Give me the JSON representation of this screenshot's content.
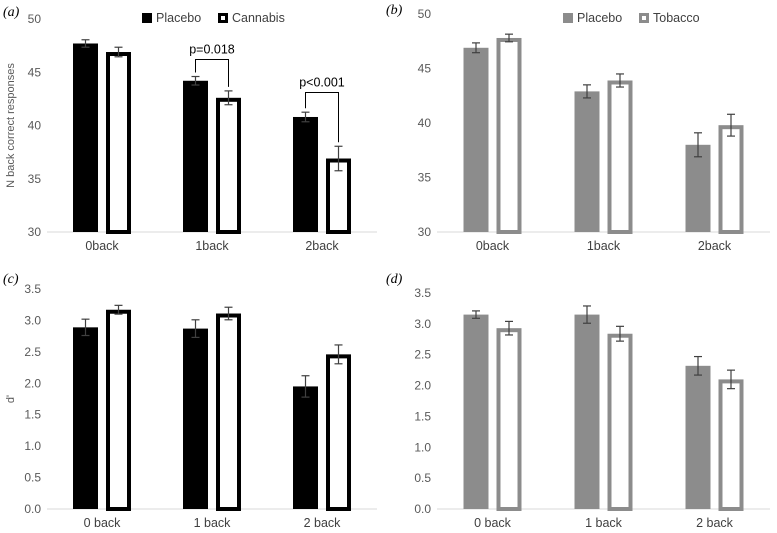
{
  "chart_data": [
    {
      "panel": "(a)",
      "type": "bar",
      "ylabel": "N back correct responses",
      "ylim": [
        30,
        50
      ],
      "yticks": [
        30,
        35,
        40,
        45,
        50
      ],
      "ytick_labels": [
        "30",
        "35",
        "40",
        "45",
        "50"
      ],
      "categories": [
        "0back",
        "1back",
        "2back"
      ],
      "legend": "top",
      "colors": {
        "first": "#000000",
        "second": "#ffffff",
        "edge": "#000000"
      },
      "series": [
        {
          "name": "Placebo",
          "values": [
            47.7,
            44.2,
            40.8
          ],
          "errors": [
            0.35,
            0.4,
            0.45
          ]
        },
        {
          "name": "Cannabis",
          "values": [
            46.9,
            42.6,
            36.9
          ],
          "errors": [
            0.45,
            0.65,
            1.15
          ]
        }
      ],
      "annotations": [
        {
          "text": "p=0.018",
          "category": 1,
          "height": 46.2
        },
        {
          "text": "p<0.001",
          "category": 2,
          "height": 43.1
        }
      ]
    },
    {
      "panel": "(b)",
      "type": "bar",
      "ylabel": "",
      "ylim": [
        30,
        50
      ],
      "yticks": [
        30,
        35,
        40,
        45,
        50
      ],
      "ytick_labels": [
        "30",
        "35",
        "40",
        "45",
        "50"
      ],
      "categories": [
        "0back",
        "1back",
        "2back"
      ],
      "legend": "top",
      "colors": {
        "first": "#8c8c8c",
        "second": "#ffffff",
        "edge": "#8c8c8c"
      },
      "series": [
        {
          "name": "Placebo",
          "values": [
            46.9,
            42.9,
            38.0
          ],
          "errors": [
            0.45,
            0.6,
            1.1
          ]
        },
        {
          "name": "Tobacco",
          "values": [
            47.8,
            43.9,
            39.8
          ],
          "errors": [
            0.35,
            0.6,
            1.0
          ]
        }
      ],
      "annotations": []
    },
    {
      "panel": "(c)",
      "type": "bar",
      "ylabel": "d'",
      "ylim": [
        0,
        3.5
      ],
      "yticks": [
        0,
        0.5,
        1.0,
        1.5,
        2.0,
        2.5,
        3.0,
        3.5
      ],
      "ytick_labels": [
        "0.0",
        "0.5",
        "1.0",
        "1.5",
        "2.0",
        "2.5",
        "3.0",
        "3.5"
      ],
      "categories": [
        "0 back",
        "1 back",
        "2 back"
      ],
      "legend": "none",
      "colors": {
        "first": "#000000",
        "second": "#ffffff",
        "edge": "#000000"
      },
      "series": [
        {
          "values": [
            2.89,
            2.87,
            1.95
          ],
          "errors": [
            0.13,
            0.14,
            0.17
          ]
        },
        {
          "values": [
            3.17,
            3.11,
            2.46
          ],
          "errors": [
            0.07,
            0.1,
            0.15
          ]
        }
      ],
      "annotations": []
    },
    {
      "panel": "(d)",
      "type": "bar",
      "ylabel": "",
      "ylim": [
        0,
        3.5
      ],
      "yticks": [
        0,
        0.5,
        1.0,
        1.5,
        2.0,
        2.5,
        3.0,
        3.5
      ],
      "ytick_labels": [
        "0.0",
        "0.5",
        "1.0",
        "1.5",
        "2.0",
        "2.5",
        "3.0",
        "3.5"
      ],
      "categories": [
        "0 back",
        "1 back",
        "2 back"
      ],
      "legend": "none",
      "colors": {
        "first": "#8c8c8c",
        "second": "#ffffff",
        "edge": "#8c8c8c"
      },
      "series": [
        {
          "values": [
            3.15,
            3.15,
            2.32
          ],
          "errors": [
            0.06,
            0.14,
            0.15
          ]
        },
        {
          "values": [
            2.93,
            2.84,
            2.1
          ],
          "errors": [
            0.11,
            0.12,
            0.15
          ]
        }
      ],
      "annotations": []
    }
  ]
}
